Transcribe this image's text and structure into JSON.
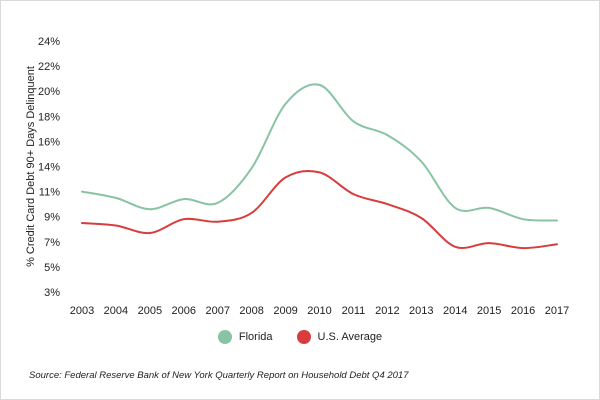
{
  "chart_data": {
    "type": "line",
    "ylabel": "% Credit Card Debt 90+ Days Delinquent",
    "xlabel": "",
    "x": [
      "2003",
      "2004",
      "2005",
      "2006",
      "2007",
      "2008",
      "2009",
      "2010",
      "2011",
      "2012",
      "2013",
      "2014",
      "2015",
      "2016",
      "2017"
    ],
    "yticks": [
      3,
      5,
      7,
      9,
      11,
      14,
      16,
      18,
      20,
      22,
      24
    ],
    "ytick_labels": [
      "3%",
      "5%",
      "7%",
      "9%",
      "11%",
      "14%",
      "16%",
      "18%",
      "20%",
      "22%",
      "24%"
    ],
    "ylim": [
      3,
      24
    ],
    "grid": false,
    "legend_position": "bottom",
    "series": [
      {
        "name": "Florida",
        "color": "#88c3a4",
        "values": [
          11.0,
          10.5,
          9.6,
          10.4,
          10.1,
          13.8,
          19.0,
          20.5,
          17.6,
          16.5,
          14.4,
          9.7,
          9.7,
          8.8,
          8.7
        ]
      },
      {
        "name": "U.S. Average",
        "color": "#d83c3c",
        "values": [
          8.5,
          8.3,
          7.7,
          8.8,
          8.6,
          9.3,
          12.7,
          13.3,
          10.8,
          10.0,
          8.9,
          6.6,
          6.9,
          6.5,
          6.8
        ]
      }
    ]
  },
  "source": "Source: Federal Reserve Bank of New York Quarterly Report on Household Debt Q4 2017"
}
